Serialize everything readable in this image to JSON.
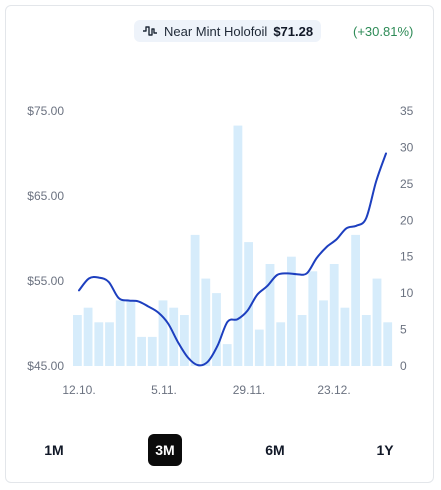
{
  "legend": {
    "label": "Near Mint Holofoil",
    "price": "$71.28",
    "change": "(+30.81%)",
    "icon": "line-chart-icon",
    "change_color": "#2e8b57"
  },
  "ranges": {
    "items": [
      "1M",
      "3M",
      "6M",
      "1Y"
    ],
    "active": "3M"
  },
  "chart_data": {
    "type": "line",
    "x_ticks": [
      "12.10.",
      "5.11.",
      "29.11.",
      "23.12."
    ],
    "y_left": {
      "ticks": [
        "$75.00",
        "$65.00",
        "$55.00",
        "$45.00"
      ],
      "min": 45,
      "max": 75
    },
    "y_right": {
      "ticks": [
        "35",
        "30",
        "25",
        "20",
        "15",
        "10",
        "5",
        "0"
      ],
      "min": 0,
      "max": 35
    },
    "grid": false,
    "colors": {
      "line": "#1d3fbf",
      "bars": "#d6ecfb"
    },
    "series": [
      {
        "kind": "line",
        "axis": "left",
        "values": [
          53.9,
          55.3,
          55.4,
          54.9,
          53.0,
          52.7,
          52.6,
          52.0,
          51.3,
          50.0,
          47.8,
          46.0,
          45.1,
          45.5,
          47.4,
          50.2,
          50.5,
          51.5,
          53.4,
          54.4,
          55.7,
          55.9,
          55.8,
          55.9,
          57.7,
          59.0,
          59.9,
          61.2,
          61.5,
          62.4,
          66.7,
          70.0
        ]
      },
      {
        "kind": "bar",
        "axis": "right",
        "values": [
          7,
          8,
          6,
          6,
          9,
          9,
          4,
          4,
          9,
          8,
          7,
          18,
          12,
          10,
          3,
          33,
          17,
          5,
          14,
          6,
          15,
          7,
          13,
          9,
          14,
          8,
          18,
          7,
          12,
          6
        ]
      }
    ]
  }
}
